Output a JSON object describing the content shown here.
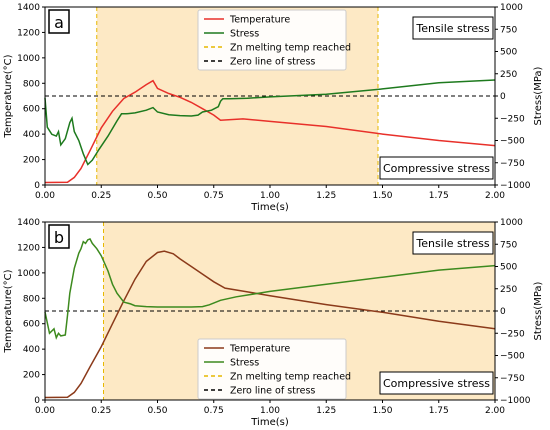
{
  "chart_data": [
    {
      "type": "line",
      "panel_label": "a",
      "xlabel": "Time(s)",
      "ylabel_left": "Temperature(°C)",
      "ylabel_right": "Stress(MPa)",
      "xlim": [
        0,
        2.0
      ],
      "ylim_left": [
        0,
        1400
      ],
      "ylim_right": [
        -1000,
        1000
      ],
      "x_ticks": [
        "0.00",
        "0.25",
        "0.50",
        "0.75",
        "1.00",
        "1.25",
        "1.50",
        "1.75",
        "2.00"
      ],
      "y_left_ticks": [
        "0",
        "200",
        "400",
        "600",
        "800",
        "1000",
        "1200",
        "1400"
      ],
      "y_right_ticks": [
        "−1000",
        "−750",
        "−500",
        "−250",
        "0",
        "250",
        "500",
        "750",
        "1000"
      ],
      "shaded_region": [
        0.23,
        1.48
      ],
      "shade_color": "#fde9c5",
      "zn_melting_line_x": 0.23,
      "zero_stress_line": 0,
      "annotation_top": "Tensile stress",
      "annotation_bottom": "Compressive stress",
      "legend_position": "top-center",
      "legend": [
        "Temperature",
        "Stress",
        "Zn melting temp reached",
        "Zero line of stress"
      ],
      "series": [
        {
          "name": "Temperature",
          "axis": "left",
          "color": "#e8302a",
          "points": [
            [
              0,
              20
            ],
            [
              0.1,
              22
            ],
            [
              0.13,
              60
            ],
            [
              0.16,
              130
            ],
            [
              0.2,
              270
            ],
            [
              0.25,
              450
            ],
            [
              0.3,
              580
            ],
            [
              0.35,
              680
            ],
            [
              0.4,
              730
            ],
            [
              0.45,
              790
            ],
            [
              0.48,
              820
            ],
            [
              0.5,
              760
            ],
            [
              0.55,
              720
            ],
            [
              0.6,
              690
            ],
            [
              0.65,
              650
            ],
            [
              0.7,
              600
            ],
            [
              0.75,
              550
            ],
            [
              0.78,
              510
            ],
            [
              0.88,
              520
            ],
            [
              1.0,
              500
            ],
            [
              1.25,
              460
            ],
            [
              1.5,
              400
            ],
            [
              1.75,
              350
            ],
            [
              2.0,
              310
            ]
          ]
        },
        {
          "name": "Stress",
          "axis": "right",
          "color": "#1e7a1e",
          "points": [
            [
              0,
              -20
            ],
            [
              0.01,
              -350
            ],
            [
              0.03,
              -430
            ],
            [
              0.05,
              -450
            ],
            [
              0.06,
              -400
            ],
            [
              0.07,
              -550
            ],
            [
              0.09,
              -480
            ],
            [
              0.11,
              -300
            ],
            [
              0.12,
              -250
            ],
            [
              0.13,
              -400
            ],
            [
              0.15,
              -500
            ],
            [
              0.17,
              -650
            ],
            [
              0.19,
              -770
            ],
            [
              0.21,
              -720
            ],
            [
              0.24,
              -600
            ],
            [
              0.28,
              -450
            ],
            [
              0.32,
              -280
            ],
            [
              0.34,
              -200
            ],
            [
              0.36,
              -200
            ],
            [
              0.4,
              -190
            ],
            [
              0.45,
              -160
            ],
            [
              0.48,
              -130
            ],
            [
              0.5,
              -180
            ],
            [
              0.55,
              -210
            ],
            [
              0.6,
              -220
            ],
            [
              0.65,
              -225
            ],
            [
              0.68,
              -215
            ],
            [
              0.7,
              -180
            ],
            [
              0.74,
              -160
            ],
            [
              0.77,
              -120
            ],
            [
              0.78,
              -60
            ],
            [
              0.79,
              -30
            ],
            [
              0.82,
              -30
            ],
            [
              0.9,
              -25
            ],
            [
              1.0,
              -10
            ],
            [
              1.25,
              20
            ],
            [
              1.5,
              80
            ],
            [
              1.75,
              150
            ],
            [
              2.0,
              180
            ]
          ]
        }
      ]
    },
    {
      "type": "line",
      "panel_label": "b",
      "xlabel": "Time(s)",
      "ylabel_left": "Temperature(°C)",
      "ylabel_right": "Stress(MPa)",
      "xlim": [
        0,
        2.0
      ],
      "ylim_left": [
        0,
        1400
      ],
      "ylim_right": [
        -1000,
        1000
      ],
      "x_ticks": [
        "0.00",
        "0.25",
        "0.50",
        "0.75",
        "1.00",
        "1.25",
        "1.50",
        "1.75",
        "2.00"
      ],
      "y_left_ticks": [
        "0",
        "200",
        "400",
        "600",
        "800",
        "1000",
        "1200",
        "1400"
      ],
      "y_right_ticks": [
        "−1000",
        "−750",
        "−500",
        "−250",
        "0",
        "250",
        "500",
        "750",
        "1000"
      ],
      "shaded_region": [
        0.26,
        2.0
      ],
      "shade_color": "#fde9c5",
      "zn_melting_line_x": 0.26,
      "zero_stress_line": 0,
      "annotation_top": "Tensile stress",
      "annotation_bottom": "Compressive stress",
      "legend_position": "lower-center",
      "legend": [
        "Temperature",
        "Stress",
        "Zn melting temp reached",
        "Zero line of stress"
      ],
      "series": [
        {
          "name": "Temperature",
          "axis": "left",
          "color": "#8b3a1a",
          "points": [
            [
              0,
              20
            ],
            [
              0.1,
              22
            ],
            [
              0.13,
              60
            ],
            [
              0.16,
              130
            ],
            [
              0.2,
              260
            ],
            [
              0.25,
              420
            ],
            [
              0.3,
              600
            ],
            [
              0.35,
              780
            ],
            [
              0.4,
              950
            ],
            [
              0.45,
              1090
            ],
            [
              0.5,
              1160
            ],
            [
              0.53,
              1170
            ],
            [
              0.57,
              1150
            ],
            [
              0.6,
              1110
            ],
            [
              0.65,
              1050
            ],
            [
              0.7,
              990
            ],
            [
              0.75,
              930
            ],
            [
              0.8,
              880
            ],
            [
              0.9,
              850
            ],
            [
              1.0,
              820
            ],
            [
              1.25,
              750
            ],
            [
              1.5,
              690
            ],
            [
              1.75,
              620
            ],
            [
              2.0,
              560
            ]
          ]
        },
        {
          "name": "Stress",
          "axis": "right",
          "color": "#3d8a1e",
          "points": [
            [
              0,
              -10
            ],
            [
              0.02,
              -250
            ],
            [
              0.04,
              -200
            ],
            [
              0.05,
              -300
            ],
            [
              0.06,
              -250
            ],
            [
              0.07,
              -280
            ],
            [
              0.09,
              -270
            ],
            [
              0.1,
              -50
            ],
            [
              0.11,
              200
            ],
            [
              0.13,
              480
            ],
            [
              0.15,
              650
            ],
            [
              0.16,
              700
            ],
            [
              0.17,
              780
            ],
            [
              0.18,
              760
            ],
            [
              0.19,
              800
            ],
            [
              0.2,
              810
            ],
            [
              0.21,
              760
            ],
            [
              0.23,
              700
            ],
            [
              0.25,
              620
            ],
            [
              0.28,
              450
            ],
            [
              0.3,
              300
            ],
            [
              0.32,
              200
            ],
            [
              0.35,
              100
            ],
            [
              0.38,
              80
            ],
            [
              0.4,
              60
            ],
            [
              0.45,
              50
            ],
            [
              0.5,
              45
            ],
            [
              0.55,
              45
            ],
            [
              0.6,
              45
            ],
            [
              0.65,
              45
            ],
            [
              0.7,
              50
            ],
            [
              0.73,
              70
            ],
            [
              0.78,
              120
            ],
            [
              0.85,
              160
            ],
            [
              1.0,
              220
            ],
            [
              1.25,
              300
            ],
            [
              1.5,
              380
            ],
            [
              1.75,
              460
            ],
            [
              2.0,
              510
            ]
          ]
        }
      ]
    }
  ]
}
